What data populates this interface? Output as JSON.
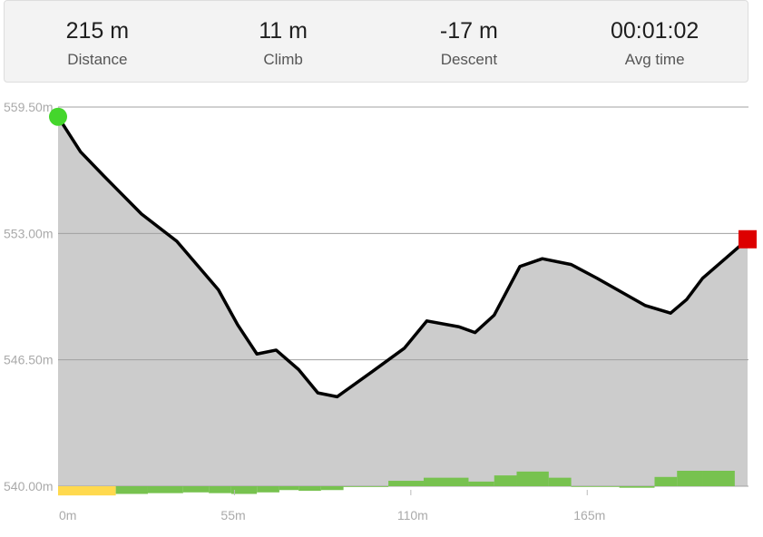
{
  "stats": [
    {
      "value": "215 m",
      "label": "Distance"
    },
    {
      "value": "11 m",
      "label": "Climb"
    },
    {
      "value": "-17 m",
      "label": "Descent"
    },
    {
      "value": "00:01:02",
      "label": "Avg time"
    }
  ],
  "colors": {
    "area": "#cccccc",
    "line": "#000000",
    "start_marker": "#44d62c",
    "end_marker": "#dd0000",
    "grade_positive": "#77c24f",
    "grade_steep_negative": "#ffd94e",
    "gridline": "#a0a0a0"
  },
  "chart_data": {
    "type": "area",
    "title": "",
    "xlabel": "",
    "ylabel": "",
    "xlim": [
      0,
      215
    ],
    "ylim": [
      540,
      559.5
    ],
    "y_ticks": [
      540,
      546.5,
      553,
      559.5
    ],
    "y_tick_labels": [
      "540.00m",
      "546.50m",
      "553.00m",
      "559.50m"
    ],
    "x_ticks": [
      0,
      55,
      110,
      165
    ],
    "x_tick_labels": [
      "0m",
      "55m",
      "110m",
      "165m"
    ],
    "grid": "horizontal",
    "elevation": {
      "x": [
        0,
        7,
        14,
        26,
        37,
        50,
        56,
        62,
        68,
        75,
        81,
        87,
        98,
        108,
        115,
        125,
        130,
        136,
        144,
        151,
        160,
        168,
        183,
        191,
        196,
        201,
        215
      ],
      "y": [
        559.0,
        557.2,
        556.0,
        554.0,
        552.6,
        550.1,
        548.3,
        546.8,
        547.0,
        546.0,
        544.8,
        544.6,
        545.9,
        547.1,
        548.5,
        548.2,
        547.9,
        548.8,
        551.3,
        551.7,
        551.4,
        550.7,
        549.3,
        548.9,
        549.6,
        550.7,
        552.7
      ]
    },
    "grade_bars": {
      "x_start": [
        0,
        18,
        28,
        39,
        47,
        54,
        62,
        69,
        75,
        82,
        89,
        103,
        114,
        128,
        136,
        143,
        153,
        160,
        175,
        186,
        193,
        201
      ],
      "x_end": [
        18,
        28,
        39,
        47,
        54,
        62,
        69,
        75,
        82,
        89,
        103,
        114,
        128,
        136,
        143,
        153,
        160,
        175,
        186,
        193,
        201,
        211
      ],
      "value": [
        -1.2,
        -1.0,
        -0.9,
        -0.8,
        -0.9,
        -1.0,
        -0.8,
        -0.5,
        -0.6,
        -0.5,
        -0.1,
        0.7,
        1.1,
        0.6,
        1.4,
        1.9,
        1.1,
        0.0,
        -0.2,
        1.2,
        2.0,
        2.0
      ],
      "steep": [
        true,
        false,
        false,
        false,
        false,
        false,
        false,
        false,
        false,
        false,
        false,
        false,
        false,
        false,
        false,
        false,
        false,
        false,
        false,
        false,
        false,
        false
      ]
    }
  }
}
